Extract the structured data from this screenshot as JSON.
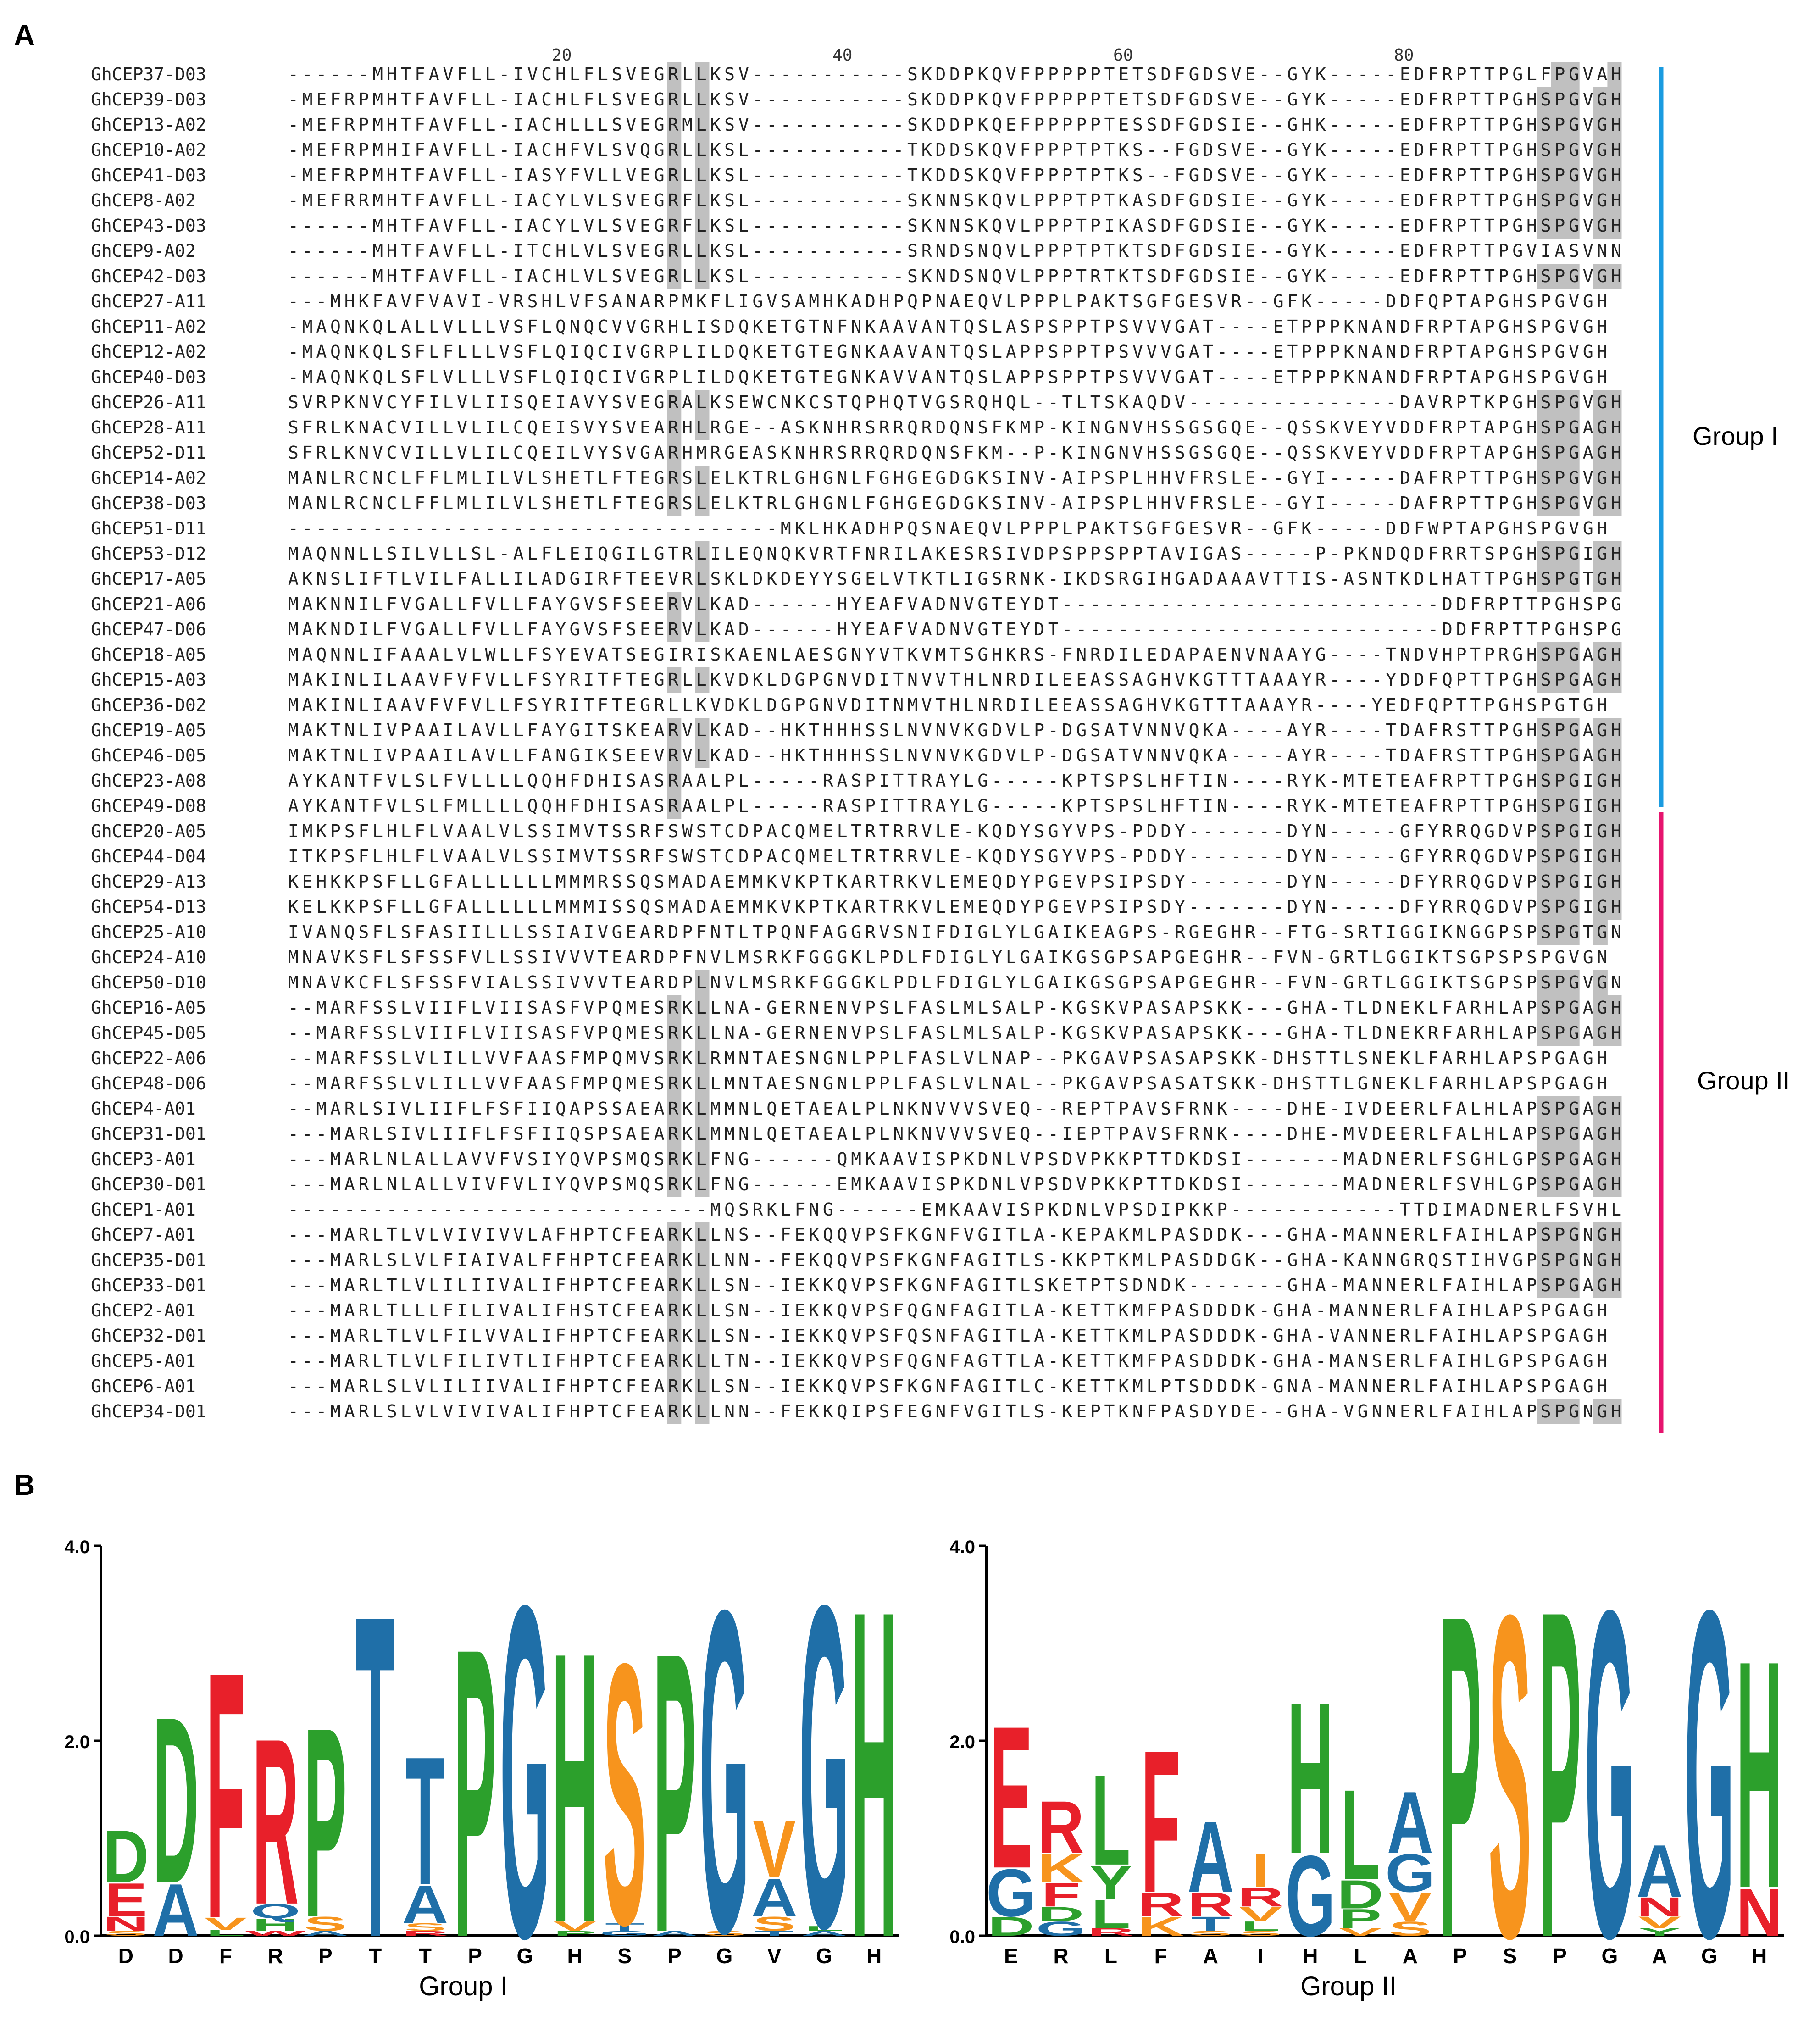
{
  "panels": {
    "a": "A",
    "b": "B"
  },
  "alignment": {
    "ruler": [
      {
        "pos": 20,
        "label": "20"
      },
      {
        "pos": 40,
        "label": "40"
      },
      {
        "pos": 60,
        "label": "60"
      },
      {
        "pos": 80,
        "label": "80"
      }
    ],
    "rows": [
      {
        "name": "GhCEP37-D03",
        "seq": "------MHTFAVFLL-IVCHLFLSVEGRLLKSV-----------SKDDPKQVFPPPPPTETSDFGDSVE--GYK-----EDFRPTTPGLFPGVAH"
      },
      {
        "name": "GhCEP39-D03",
        "seq": "-MEFRPMHTFAVFLL-IACHLFLSVEGRLLKSV-----------SKDDPKQVFPPPPPTETSDFGDSVE--GYK-----EDFRPTTPGHSPGVGH"
      },
      {
        "name": "GhCEP13-A02",
        "seq": "-MEFRPMHTFAVFLL-IACHLLLSVEGRMLKSV-----------SKDDPKQEFPPPPPTESSDFGDSIE--GHK-----EDFRPTTPGHSPGVGH"
      },
      {
        "name": "GhCEP10-A02",
        "seq": "-MEFRPMHIFAVFLL-IACHFVLSVQGRLLKSL-----------TKDDSKQVFPPPTPTKS--FGDSVE--GYK-----EDFRPTTPGHSPGVGH"
      },
      {
        "name": "GhCEP41-D03",
        "seq": "-MEFRPMHTFAVFLL-IASYFVLLVEGRLLKSL-----------TKDDSKQVFPPPTPTKS--FGDSVE--GYK-----EDFRPTTPGHSPGVGH"
      },
      {
        "name": "GhCEP8-A02",
        "seq": "-MEFRRMHTFAVFLL-IACYLVLSVEGRFLKSL-----------SKNNSKQVLPPPTPTKASDFGDSIE--GYK-----EDFRPTTPGHSPGVGH"
      },
      {
        "name": "GhCEP43-D03",
        "seq": "------MHTFAVFLL-IACYLVLSVEGRFLKSL-----------SKNNSKQVLPPPTPIKASDFGDSIE--GYK-----EDFRPTTPGHSPGVGH"
      },
      {
        "name": "GhCEP9-A02",
        "seq": "------MHTFAVFLL-ITCHLVLSVEGRLLKSL-----------SRNDSNQVLPPPTPTKTSDFGDSIE--GYK-----EDFRPTTPGVIASVNN"
      },
      {
        "name": "GhCEP42-D03",
        "seq": "------MHTFAVFLL-IACHLVLSVEGRLLKSL-----------SKNDSNQVLPPPTRTKTSDFGDSIE--GYK-----EDFRPTTPGHSPGVGH"
      },
      {
        "name": "GhCEP27-A11",
        "seq": "---MHKFAVFVAVI-VRSHLVFSANARPMKFLIGVSAMHKADHPQPNAEQVLPPPLPAKTSGFGESVR--GFK-----DDFQPTAPGHSPGVGH"
      },
      {
        "name": "GhCEP11-A02",
        "seq": "-MAQNKQLALLVLLLVSFLQNQCVVGRHLISDQKETGTNFNKAAVANTQSLASPSPPTPSVVVGAT----ETPPPKNANDFRPTAPGHSPGVGH"
      },
      {
        "name": "GhCEP12-A02",
        "seq": "-MAQNKQLSFLFLLLVSFLQIQCIVGRPLILDQKETGTEGNKAAVANTQSLAPPSPPTPSVVVGAT----ETPPPKNANDFRPTAPGHSPGVGH"
      },
      {
        "name": "GhCEP40-D03",
        "seq": "-MAQNKQLSFLVLLLVSFLQIQCIVGRPLILDQKETGTEGNKAVVANTQSLAPPSPPTPSVVVGAT----ETPPPKNANDFRPTAPGHSPGVGH"
      },
      {
        "name": "GhCEP26-A11",
        "seq": "SVRPKNVCYFILVLIISQEIAVYSVEGRALKSEWCNKCSTQPHQTVGSRQHQL--TLTSKAQDV---------------DAVRPTKPGHSPGVGH"
      },
      {
        "name": "GhCEP28-A11",
        "seq": "SFRLKNACVILLVLILCQEISVYSVEARHLRGE--ASKNHRSRRQRDQNSFKMP-KINGNVHSSGSGQE--QSSKVEYVDDFRPTAPGHSPGAGH"
      },
      {
        "name": "GhCEP52-D11",
        "seq": "SFRLKNVCVILLVLILCQEILVYSVGARHMRGEASKNHRSRRQRDQNSFKM--P-KINGNVHSSGSGQE--QSSKVEYVDDFRPTAPGHSPGAGH"
      },
      {
        "name": "GhCEP14-A02",
        "seq": "MANLRCNCLFFLMLILVLSHETLFTEGRSLELKTRLGHGNLFGHGEGDGKSINV-AIPSPLHHVFRSLE--GYI-----DAFRPTTPGHSPGVGH"
      },
      {
        "name": "GhCEP38-D03",
        "seq": "MANLRCNCLFFLMLILVLSHETLFTEGRSLELKTRLGHGNLFGHGEGDGKSINV-AIPSPLHHVFRSLE--GYI-----DAFRPTTPGHSPGVGH"
      },
      {
        "name": "GhCEP51-D11",
        "seq": "-----------------------------------MKLHKADHPQSNAEQVLPPPLPAKTSGFGESVR--GFK-----DDFWPTAPGHSPGVGH"
      },
      {
        "name": "GhCEP53-D12",
        "seq": "MAQNNLLSILVLLSL-ALFLEIQGILGTRLILEQNQKVRTFNRILAKESRSIVDPSPPSPPTAVIGAS-----P-PKNDQDFRRTSPGHSPGIGH"
      },
      {
        "name": "GhCEP17-A05",
        "seq": "AKNSLIFTLVILFALLILADGIRFTEEVRLSKLDKDEYYSGELVTKTLIGSRNK-IKDSRGIHGADAAAVTTIS-ASNTKDLHATTPGHSPGTGH"
      },
      {
        "name": "GhCEP21-A06",
        "seq": "MAKNNILFVGALLFVLLFAYGVSFSEERVLKAD------HYEAFVADNVGTEYDT---------------------------DDFRPTTPGHSPGAGH"
      },
      {
        "name": "GhCEP47-D06",
        "seq": "MAKNDILFVGALLFVLLFAYGVSFSEERVLKAD------HYEAFVADNVGTEYDT---------------------------DDFRPTTPGHSPGAGH"
      },
      {
        "name": "GhCEP18-A05",
        "seq": "MAQNNLIFAAALVLWLLFSYEVATSEGIRISKAENLAESGNYVTKVMTSGHKRS-FNRDILEDAPAENVNAAYG----TNDVHPTPRGHSPGAGH"
      },
      {
        "name": "GhCEP15-A03",
        "seq": "MAKINLILAAVFVFVLLFSYRITFTEGRLLKVDKLDGPGNVDITNVVTHLNRDILEEASSAGHVKGTTTAAAYR----YDDFQPTTPGHSPGAGH"
      },
      {
        "name": "GhCEP36-D02",
        "seq": "MAKINLIAAVFVFVLLFSYRITFTEGRLLKVDKLDGPGNVDITNMVTHLNRDILEEASSAGHVKGTTTAAAYR----YEDFQPTTPGHSPGTGH"
      },
      {
        "name": "GhCEP19-A05",
        "seq": "MAKTNLIVPAAILAVLLFAYGITSKEARVLKAD--HKTHHHSSLNVNVKGDVLP-DGSATVNNVQKA----AYR----TDAFRSTTPGHSPGAGH"
      },
      {
        "name": "GhCEP46-D05",
        "seq": "MAKTNLIVPAAILAVLLFANGIKSEEVRVLKAD--HKTHHHSSLNVNVKGDVLP-DGSATVNNVQKA----AYR----TDAFRSTTPGHSPGAGH"
      },
      {
        "name": "GhCEP23-A08",
        "seq": "AYKANTFVLSLFVLLLLQQHFDHISASRAALPL-----RASPITTRAYLG-----KPTSPSLHFTIN----RYK-MTETEAFRPTTPGHSPGIGH"
      },
      {
        "name": "GhCEP49-D08",
        "seq": "AYKANTFVLSLFMLLLLQQHFDHISASRAALPL-----RASPITTRAYLG-----KPTSPSLHFTIN----RYK-MTETEAFRPTTPGHSPGIGH"
      },
      {
        "name": "GhCEP20-A05",
        "seq": "IMKPSFLHLFLVAALVLSSIMVTSSRFSWSTCDPACQMELTRTRRVLE-KQDYSGYVPS-PDDY-------DYN-----GFYRRQGDVPSPGIGH"
      },
      {
        "name": "GhCEP44-D04",
        "seq": "ITKPSFLHLFLVAALVLSSIMVTSSRFSWSTCDPACQMELTRTRRVLE-KQDYSGYVPS-PDDY-------DYN-----GFYRRQGDVPSPGIGH"
      },
      {
        "name": "GhCEP29-A13",
        "seq": "KEHKKPSFLLGFALLLLLLMMMRSSQSMADAEMMKVKPTKARTRKVLEMEQDYPGEVPSIPSDY-------DYN-----DFYRRQGDVPSPGIGH"
      },
      {
        "name": "GhCEP54-D13",
        "seq": "KELKKPSFLLGFALLLLLLMMMISSQSMADAEMMKVKPTKARTRKVLEMEQDYPGEVPSIPSDY-------DYN-----DFYRRQGDVPSPGIGH"
      },
      {
        "name": "GhCEP25-A10",
        "seq": "IVANQSFLSFASIILLLSSIAIVGEARDPFNTLTPQNFAGGRVSNIFDIGLYLGAIKEAGPS-RGEGHR--FTG-SRTIGGIKNGGPSPSPGTGN"
      },
      {
        "name": "GhCEP24-A10",
        "seq": "MNAVKSFLSFSSFVLLSSIVVVTEARDPFNVLMSRKFGGGKLPDLFDIGLYLGAIKGSGPSAPGEGHR--FVN-GRTLGGIKTSGPSPSPGVGN"
      },
      {
        "name": "GhCEP50-D10",
        "seq": "MNAVKCFLSFSSFVIALSSIVVVTEARDPLNVLMSRKFGGGKLPDLFDIGLYLGAIKGSGPSAPGEGHR--FVN-GRTLGGIKTSGPSPSPGVGN"
      },
      {
        "name": "GhCEP16-A05",
        "seq": "--MARFSSLVIIFLVIISASFVPQMESRKLLNA-GERNENVPSLFASLMLSALP-KGSKVPASAPSKK---GHA-TLDNEKLFARHLAPSPGAGH"
      },
      {
        "name": "GhCEP45-D05",
        "seq": "--MARFSSLVIIFLVIISASFVPQMESRKLLNA-GERNENVPSLFASLMLSALP-KGSKVPASAPSKK---GHA-TLDNEKRFARHLAPSPGAGH"
      },
      {
        "name": "GhCEP22-A06",
        "seq": "--MARFSSLVLILLVVFAASFMPQMVSRKLRMNTAESNGNLPPLFASLVLNAP--PKGAVPSASAPSKK-DHSTTLSNEKLFARHLAPSPGAGH"
      },
      {
        "name": "GhCEP48-D06",
        "seq": "--MARFSSLVLILLVVFAASFMPQMESRKLLMNTAESNGNLPPLFASLVLNAL--PKGAVPSASATSKK-DHSTTLGNEKLFARHLAPSPGAGH"
      },
      {
        "name": "GhCEP4-A01",
        "seq": "--MARLSIVLIIFLFSFIIQAPSSAEARKLMMNLQETAEALPLNKNVVVSVEQ--REPTPAVSFRNK----DHE-IVDEERLFALHLAPSPGAGH"
      },
      {
        "name": "GhCEP31-D01",
        "seq": "---MARLSIVLIIFLFSFIIQSPSAEARKLMMNLQETAEALPLNKNVVVSVEQ--IEPTPAVSFRNK----DHE-MVDEERLFALHLAPSPGAGH"
      },
      {
        "name": "GhCEP3-A01",
        "seq": "---MARLNLALLAVVFVSIYQVPSMQSRKLFNG------QMKAAVISPKDNLVPSDVPKKPTTDKDSI-------MADNERLFSGHLGPSPGAGH"
      },
      {
        "name": "GhCEP30-D01",
        "seq": "---MARLNLALLVIVFVLIYQVPSMQSRKLFNG------EMKAAVISPKDNLVPSDVPKKPTTDKDSI-------MADNERLFSVHLGPSPGAGH"
      },
      {
        "name": "GhCEP1-A01",
        "seq": "------------------------------MQSRKLFNG------EMKAAVISPKDNLVPSDIPKKP------------TTDIMADNERLFSVHLGPSPGAGH"
      },
      {
        "name": "GhCEP7-A01",
        "seq": "---MARLTLVLVIVIVVLAFHPTCFEARKLLNS--FEKQQVPSFKGNFVGITLA-KEPAKMLPASDDK---GHA-MANNERLFAIHLAPSPGNGH"
      },
      {
        "name": "GhCEP35-D01",
        "seq": "---MARLSLVLFIAIVALFFHPTCFEARKLLNN--FEKQQVPSFKGNFAGITLS-KKPTKMLPASDDGK--GHA-KANNGRQSTIHVGPSPGNGH"
      },
      {
        "name": "GhCEP33-D01",
        "seq": "---MARLTLVLILIIVALIFHPTCFEARKLLSN--IEKKQVPSFKGNFAGITLSKETPTSDNDK-------GHA-MANNERLFAIHLAPSPGAGH"
      },
      {
        "name": "GhCEP2-A01",
        "seq": "---MARLTLLLFILIVALIFHSTCFEARKLLSN--IEKKQVPSFQGNFAGITLA-KETTKMFPASDDDK-GHA-MANNERLFAIHLAPSPGAGH"
      },
      {
        "name": "GhCEP32-D01",
        "seq": "---MARLTLVLFILVVALIFHPTCFEARKLLSN--IEKKQVPSFQSNFAGITLA-KETTKMLPASDDDK-GHA-VANNERLFAIHLAPSPGAGH"
      },
      {
        "name": "GhCEP5-A01",
        "seq": "---MARLTLVLFILIVTLIFHPTCFEARKLLTN--IEKKQVPSFQGNFAGTTLA-KETTKMFPASDDDK-GHA-MANSERLFAIHLGPSPGAGH"
      },
      {
        "name": "GhCEP6-A01",
        "seq": "---MARLSLVLILIIVALIFHPTCFEARKLLSN--IEKKQVPSFKGNFAGITLC-KETTKMLPTSDDDK-GNA-MANNERLFAIHLAPSPGAGH"
      },
      {
        "name": "GhCEP34-D01",
        "seq": "---MARLSLVLVIVIVALIFHPTCFEARKLLNN--FEKKQIPSFEGNFVGITLS-KEPTKNFPASDYDE--GHA-VGNNERLFAIHLAPSPGNGH"
      }
    ],
    "groups": [
      {
        "label": "Group I",
        "color": "#1a9be0"
      },
      {
        "label": "Group II",
        "color": "#e6146e"
      }
    ],
    "shade_colors": {
      "dark": "#7f7f7f",
      "light": "#c0c0c0"
    }
  },
  "logos": [
    {
      "ylabels": [
        "4.0",
        "2.0",
        "0.0"
      ],
      "ymax": 4.0,
      "xlabels": [
        "D",
        "D",
        "F",
        "R",
        "P",
        "T",
        "T",
        "P",
        "G",
        "H",
        "S",
        "P",
        "G",
        "V",
        "G",
        "H"
      ],
      "title": "Group  I",
      "stacks": [
        [
          [
            "S",
            0.05
          ],
          [
            "N",
            0.15
          ],
          [
            "E",
            0.35
          ],
          [
            "D",
            0.55
          ]
        ],
        [
          [
            "A",
            0.55
          ],
          [
            "D",
            1.75
          ]
        ],
        [
          [
            "L",
            0.06
          ],
          [
            "V",
            0.13
          ],
          [
            "F",
            2.6
          ]
        ],
        [
          [
            "W",
            0.05
          ],
          [
            "H",
            0.13
          ],
          [
            "Q",
            0.15
          ],
          [
            "R",
            1.75
          ]
        ],
        [
          [
            "A",
            0.05
          ],
          [
            "S",
            0.15
          ],
          [
            "P",
            2.0
          ]
        ],
        [
          [
            "T",
            3.4
          ]
        ],
        [
          [
            "R",
            0.05
          ],
          [
            "S",
            0.08
          ],
          [
            "A",
            0.4
          ],
          [
            "T",
            1.35
          ]
        ],
        [
          [
            "P",
            3.05
          ]
        ],
        [
          [
            "G",
            3.5
          ]
        ],
        [
          [
            "P",
            0.05
          ],
          [
            "V",
            0.1
          ],
          [
            "H",
            2.85
          ]
        ],
        [
          [
            "G",
            0.05
          ],
          [
            "T",
            0.08
          ],
          [
            "S",
            2.75
          ]
        ],
        [
          [
            "A",
            0.05
          ],
          [
            "P",
            2.95
          ]
        ],
        [
          [
            "S",
            0.05
          ],
          [
            "G",
            3.4
          ]
        ],
        [
          [
            "T",
            0.05
          ],
          [
            "S",
            0.15
          ],
          [
            "A",
            0.4
          ],
          [
            "V",
            0.6
          ]
        ],
        [
          [
            "A",
            0.05
          ],
          [
            "L",
            0.05
          ],
          [
            "G",
            3.4
          ]
        ],
        [
          [
            "H",
            3.45
          ]
        ]
      ]
    },
    {
      "ylabels": [
        "4.0",
        "2.0",
        "0.0"
      ],
      "ymax": 4.0,
      "xlabels": [
        "E",
        "R",
        "L",
        "F",
        "A",
        "I",
        "H",
        "L",
        "A",
        "P",
        "S",
        "P",
        "G",
        "A",
        "G",
        "H"
      ],
      "title": "Group  II",
      "stacks": [
        [
          [
            "D",
            0.2
          ],
          [
            "G",
            0.5
          ],
          [
            "E",
            1.5
          ]
        ],
        [
          [
            "G",
            0.15
          ],
          [
            "D",
            0.15
          ],
          [
            "F",
            0.25
          ],
          [
            "K",
            0.3
          ],
          [
            "R",
            0.55
          ]
        ],
        [
          [
            "R",
            0.08
          ],
          [
            "L",
            0.3
          ],
          [
            "Y",
            0.35
          ],
          [
            "L",
            0.95
          ]
        ],
        [
          [
            "K",
            0.2
          ],
          [
            "R",
            0.25
          ],
          [
            "F",
            1.5
          ]
        ],
        [
          [
            "S",
            0.05
          ],
          [
            "T",
            0.15
          ],
          [
            "R",
            0.25
          ],
          [
            "A",
            0.75
          ]
        ],
        [
          [
            "S",
            0.05
          ],
          [
            "L",
            0.1
          ],
          [
            "V",
            0.15
          ],
          [
            "R",
            0.2
          ],
          [
            "I",
            0.35
          ]
        ],
        [
          [
            "G",
            0.85
          ],
          [
            "H",
            1.6
          ]
        ],
        [
          [
            "V",
            0.08
          ],
          [
            "P",
            0.2
          ],
          [
            "D",
            0.3
          ],
          [
            "L",
            0.95
          ]
        ],
        [
          [
            "S",
            0.15
          ],
          [
            "V",
            0.3
          ],
          [
            "G",
            0.4
          ],
          [
            "A",
            0.65
          ]
        ],
        [
          [
            "P",
            3.4
          ]
        ],
        [
          [
            "S",
            3.4
          ]
        ],
        [
          [
            "P",
            3.45
          ]
        ],
        [
          [
            "G",
            3.45
          ]
        ],
        [
          [
            "Y",
            0.08
          ],
          [
            "V",
            0.12
          ],
          [
            "N",
            0.2
          ],
          [
            "A",
            0.55
          ]
        ],
        [
          [
            "G",
            3.45
          ]
        ],
        [
          [
            "N",
            0.5
          ],
          [
            "H",
            2.4
          ]
        ]
      ]
    }
  ],
  "aa_colors": {
    "hydrophobic": "#2ca02c",
    "acidic": "#e8202a",
    "basic": "#1f6fa8",
    "polar": "#f7941d",
    "A": "#1f6fa8",
    "D": "#2ca02c",
    "E": "#e8202a",
    "F": "#e8202a",
    "G": "#1f6fa8",
    "H": "#2ca02c",
    "I": "#f7941d",
    "K": "#f7941d",
    "L": "#2ca02c",
    "M": "#e8202a",
    "N": "#e8202a",
    "P": "#2ca02c",
    "Q": "#1f6fa8",
    "R": "#e8202a",
    "S": "#f7941d",
    "T": "#1f6fa8",
    "V": "#f7941d",
    "W": "#e8202a",
    "Y": "#2ca02c",
    "C": "#1f6fa8"
  }
}
